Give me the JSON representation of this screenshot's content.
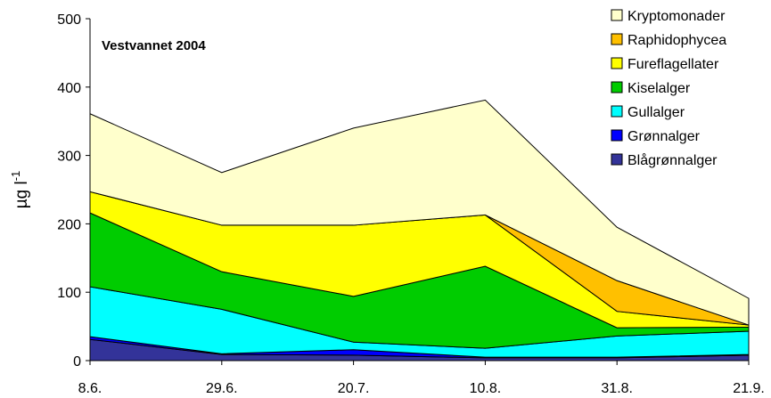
{
  "chart_data": {
    "type": "stacked_area",
    "title": "Vestvannet 2004",
    "ylabel": "µg l",
    "ylabel_sup": "-1",
    "categories": [
      "8.6.",
      "29.6.",
      "20.7.",
      "10.8.",
      "31.8.",
      "21.9."
    ],
    "series": [
      {
        "name": "Blågrønnalger",
        "color": "#333399",
        "values": [
          31,
          9,
          8,
          4,
          4,
          8
        ]
      },
      {
        "name": "Grønnalger",
        "color": "#0000ff",
        "values": [
          4,
          1,
          8,
          1,
          1,
          1
        ]
      },
      {
        "name": "Gullalger",
        "color": "#00ffff",
        "values": [
          73,
          65,
          11,
          13,
          31,
          34
        ]
      },
      {
        "name": "Kiselalger",
        "color": "#00cc00",
        "values": [
          108,
          55,
          67,
          120,
          12,
          6
        ]
      },
      {
        "name": "Fureflagellater",
        "color": "#ffff00",
        "values": [
          31,
          68,
          104,
          75,
          24,
          3
        ]
      },
      {
        "name": "Raphidophycea",
        "color": "#ffc000",
        "values": [
          0,
          0,
          0,
          0,
          45,
          0
        ]
      },
      {
        "name": "Kryptomonader",
        "color": "#ffffcc",
        "values": [
          114,
          77,
          142,
          168,
          78,
          39
        ]
      }
    ],
    "ylim": [
      0,
      500
    ],
    "yticks": [
      0,
      100,
      200,
      300,
      400,
      500
    ]
  }
}
